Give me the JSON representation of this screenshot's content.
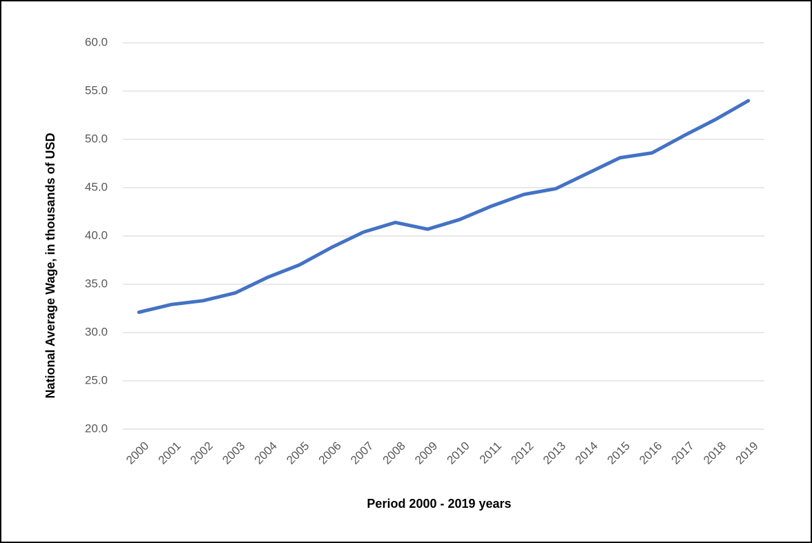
{
  "chart_data": {
    "type": "line",
    "x_label": "Period 2000 - 2019 years",
    "y_label": "National Average Wage, in thousands of USD",
    "categories": [
      "2000",
      "2001",
      "2002",
      "2003",
      "2004",
      "2005",
      "2006",
      "2007",
      "2008",
      "2009",
      "2010",
      "2011",
      "2012",
      "2013",
      "2014",
      "2015",
      "2016",
      "2017",
      "2018",
      "2019"
    ],
    "values": [
      32.1,
      32.9,
      33.3,
      34.1,
      35.7,
      37.0,
      38.8,
      40.4,
      41.4,
      40.7,
      41.7,
      43.1,
      44.3,
      44.9,
      46.5,
      48.1,
      48.6,
      50.4,
      52.1,
      54.0
    ],
    "color": "#4472c4",
    "ylim": [
      20,
      60
    ],
    "yticks": [
      {
        "value": 20,
        "label": "20.0"
      },
      {
        "value": 25,
        "label": "25.0"
      },
      {
        "value": 30,
        "label": "30.0"
      },
      {
        "value": 35,
        "label": "35.0"
      },
      {
        "value": 40,
        "label": "40.0"
      },
      {
        "value": 45,
        "label": "45.0"
      },
      {
        "value": 50,
        "label": "50.0"
      },
      {
        "value": 55,
        "label": "55.0"
      },
      {
        "value": 60,
        "label": "60.0"
      }
    ],
    "grid": true
  }
}
